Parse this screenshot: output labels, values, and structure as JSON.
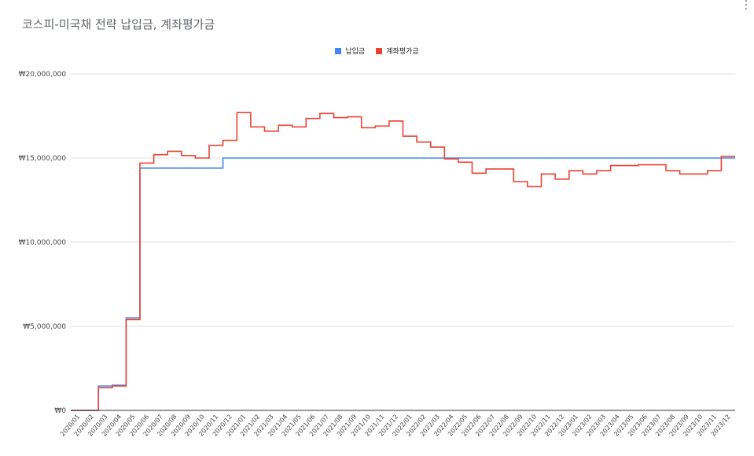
{
  "chart_data": {
    "type": "line",
    "step": true,
    "title": "코스피-미국채 전략 납입금, 계좌평가금",
    "xlabel": "",
    "ylabel": "",
    "ylim": [
      0,
      20000000
    ],
    "yticks": [
      {
        "value": 0,
        "label": "₩0"
      },
      {
        "value": 5000000,
        "label": "₩5,000,000"
      },
      {
        "value": 10000000,
        "label": "₩10,000,000"
      },
      {
        "value": 15000000,
        "label": "₩15,000,000"
      },
      {
        "value": 20000000,
        "label": "₩20,000,000"
      }
    ],
    "grid": true,
    "legend_position": "top",
    "categories": [
      "2020/01",
      "2020/02",
      "2020/03",
      "2020/04",
      "2020/05",
      "2020/06",
      "2020/07",
      "2020/08",
      "2020/09",
      "2020/10",
      "2020/11",
      "2020/12",
      "2021/01",
      "2021/02",
      "2021/03",
      "2021/04",
      "2021/05",
      "2021/06",
      "2021/07",
      "2021/08",
      "2021/09",
      "2021/10",
      "2021/11",
      "2021/12",
      "2022/01",
      "2022/02",
      "2022/03",
      "2022/04",
      "2022/05",
      "2022/06",
      "2022/07",
      "2022/08",
      "2022/09",
      "2022/10",
      "2022/11",
      "2022/12",
      "2023/01",
      "2023/02",
      "2023/03",
      "2023/04",
      "2023/05",
      "2023/06",
      "2023/07",
      "2023/08",
      "2023/09",
      "2023/10",
      "2023/11",
      "2023/12"
    ],
    "series": [
      {
        "name": "납입금",
        "color": "#4285f4",
        "values": [
          0,
          0,
          1450000,
          1500000,
          5500000,
          14400000,
          14400000,
          14400000,
          14400000,
          14400000,
          14400000,
          15000000,
          15000000,
          15000000,
          15000000,
          15000000,
          15000000,
          15000000,
          15000000,
          15000000,
          15000000,
          15000000,
          15000000,
          15000000,
          15000000,
          15000000,
          15000000,
          15000000,
          15000000,
          15000000,
          15000000,
          15000000,
          15000000,
          15000000,
          15000000,
          15000000,
          15000000,
          15000000,
          15000000,
          15000000,
          15000000,
          15000000,
          15000000,
          15000000,
          15000000,
          15000000,
          15000000,
          15000000
        ]
      },
      {
        "name": "계좌평가금",
        "color": "#ea4335",
        "values": [
          0,
          0,
          1350000,
          1450000,
          5400000,
          14700000,
          15200000,
          15400000,
          15150000,
          15000000,
          15750000,
          16050000,
          17700000,
          16850000,
          16600000,
          16950000,
          16850000,
          17350000,
          17650000,
          17400000,
          17450000,
          16800000,
          16900000,
          17200000,
          16300000,
          15950000,
          15650000,
          14950000,
          14750000,
          14100000,
          14350000,
          14350000,
          13600000,
          13300000,
          14050000,
          13750000,
          14250000,
          14050000,
          14250000,
          14550000,
          14550000,
          14600000,
          14600000,
          14250000,
          14050000,
          14050000,
          14250000,
          15100000
        ]
      }
    ]
  },
  "icons": {
    "menu": "more-vert-icon"
  }
}
